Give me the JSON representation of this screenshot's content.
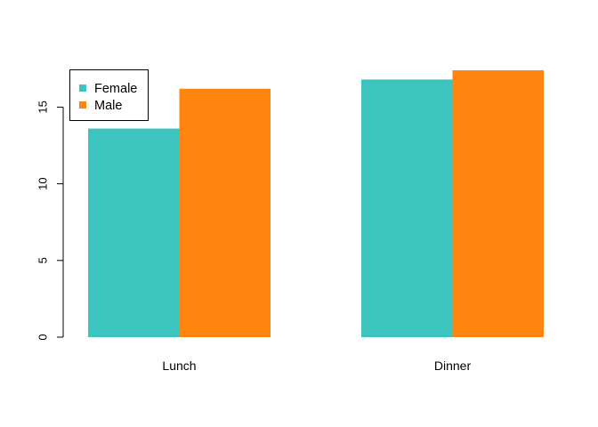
{
  "chart_data": {
    "type": "bar",
    "categories": [
      "Lunch",
      "Dinner"
    ],
    "series": [
      {
        "name": "Female",
        "color": "#3CC4BE",
        "values": [
          13.6,
          16.8
        ]
      },
      {
        "name": "Male",
        "color": "#FF8510",
        "values": [
          16.2,
          17.4
        ]
      }
    ],
    "yticks": [
      0,
      5,
      10,
      15
    ],
    "ytick_labels": [
      "0",
      "5",
      "10",
      "15"
    ],
    "ylim": [
      0,
      17.4
    ],
    "grid": false,
    "legend": "top-left",
    "title": "",
    "xlabel": "",
    "ylabel": ""
  }
}
